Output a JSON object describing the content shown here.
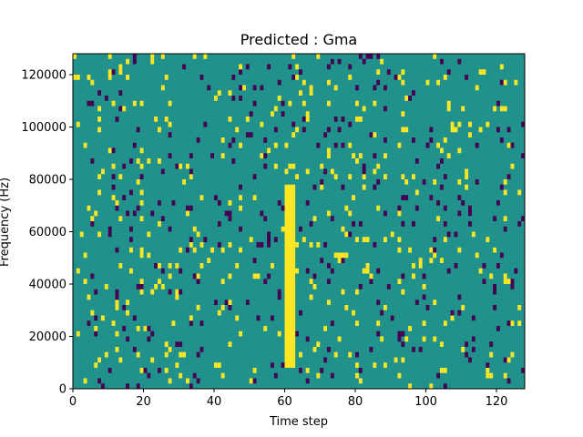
{
  "chart_data": {
    "type": "heatmap",
    "title": "Predicted : Gma",
    "xlabel": "Time step",
    "ylabel": "Frequency (Hz)",
    "xlim": [
      0,
      128
    ],
    "ylim": [
      0,
      128000
    ],
    "xticks": [
      0,
      20,
      40,
      60,
      80,
      100,
      120
    ],
    "yticks": [
      0,
      20000,
      40000,
      60000,
      80000,
      100000,
      120000
    ],
    "colors": {
      "background": "#21918c",
      "high": "#fde725",
      "low": "#440154"
    },
    "columns": {
      "time_step_count": 128,
      "frequency_bin_count": 64
    },
    "notable_region": {
      "description": "dense high-value band",
      "time_steps": [
        60,
        63
      ],
      "frequency_range_hz": [
        8000,
        78000
      ]
    }
  }
}
